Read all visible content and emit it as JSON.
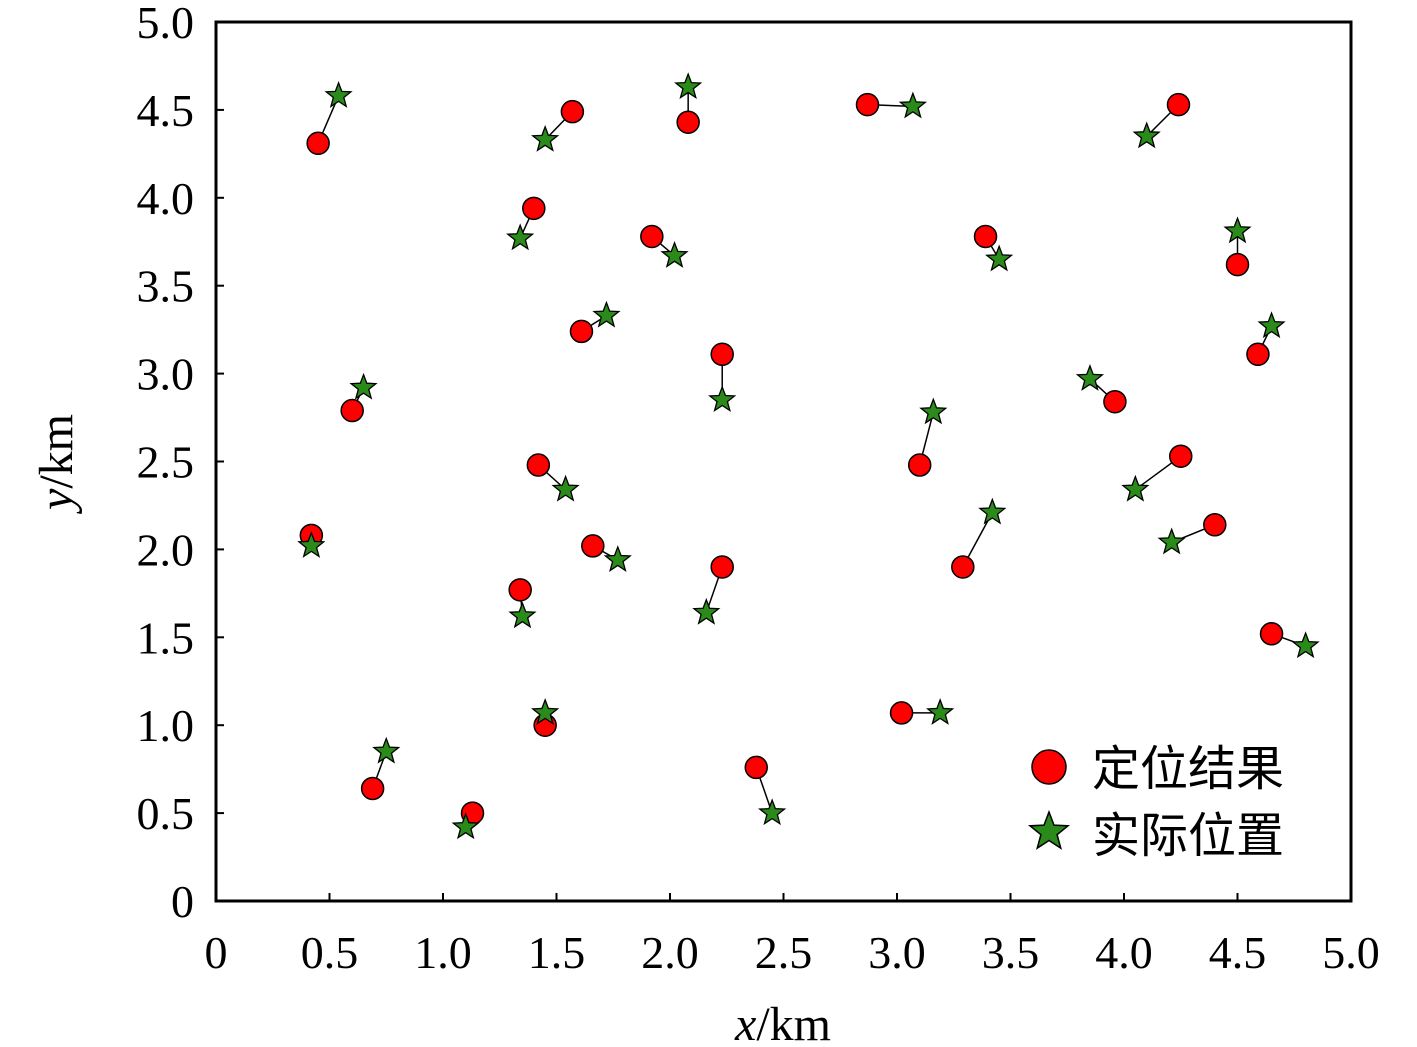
{
  "chart_data": {
    "type": "scatter",
    "xlabel_var": "x",
    "xlabel_unit": "/km",
    "ylabel_var": "y",
    "ylabel_unit": "/km",
    "xlim": [
      0,
      5
    ],
    "ylim": [
      0,
      5
    ],
    "x_ticks": [
      "0",
      "0.5",
      "1.0",
      "1.5",
      "2.0",
      "2.5",
      "3.0",
      "3.5",
      "4.0",
      "4.5",
      "5.0"
    ],
    "y_ticks": [
      "0",
      "0.5",
      "1.0",
      "1.5",
      "2.0",
      "2.5",
      "3.0",
      "3.5",
      "4.0",
      "4.5",
      "5.0"
    ],
    "grid": false,
    "legend_position": "bottom-right",
    "series": [
      {
        "name": "定位结果",
        "marker": "circle",
        "color": "#ff0000",
        "points": [
          [
            0.45,
            4.31
          ],
          [
            1.57,
            4.49
          ],
          [
            2.08,
            4.43
          ],
          [
            2.87,
            4.53
          ],
          [
            4.24,
            4.53
          ],
          [
            1.4,
            3.94
          ],
          [
            1.92,
            3.78
          ],
          [
            3.39,
            3.78
          ],
          [
            4.5,
            3.62
          ],
          [
            1.61,
            3.24
          ],
          [
            2.23,
            3.11
          ],
          [
            4.59,
            3.11
          ],
          [
            0.6,
            2.79
          ],
          [
            3.96,
            2.84
          ],
          [
            1.42,
            2.48
          ],
          [
            3.1,
            2.48
          ],
          [
            4.25,
            2.53
          ],
          [
            0.42,
            2.08
          ],
          [
            1.66,
            2.02
          ],
          [
            4.4,
            2.14
          ],
          [
            1.34,
            1.77
          ],
          [
            2.23,
            1.9
          ],
          [
            3.29,
            1.9
          ],
          [
            4.65,
            1.52
          ],
          [
            1.45,
            1.0
          ],
          [
            3.02,
            1.07
          ],
          [
            0.69,
            0.64
          ],
          [
            2.38,
            0.76
          ],
          [
            1.13,
            0.5
          ]
        ]
      },
      {
        "name": "实际位置",
        "marker": "star",
        "color": "#2a8a1a",
        "points": [
          [
            0.54,
            4.58
          ],
          [
            1.45,
            4.33
          ],
          [
            2.08,
            4.63
          ],
          [
            3.07,
            4.52
          ],
          [
            4.1,
            4.35
          ],
          [
            1.34,
            3.77
          ],
          [
            2.02,
            3.67
          ],
          [
            3.45,
            3.65
          ],
          [
            4.5,
            3.81
          ],
          [
            1.72,
            3.33
          ],
          [
            2.23,
            2.85
          ],
          [
            4.65,
            3.27
          ],
          [
            0.65,
            2.92
          ],
          [
            3.85,
            2.97
          ],
          [
            1.54,
            2.34
          ],
          [
            3.16,
            2.78
          ],
          [
            4.05,
            2.34
          ],
          [
            0.42,
            2.02
          ],
          [
            1.77,
            1.94
          ],
          [
            4.21,
            2.04
          ],
          [
            1.35,
            1.62
          ],
          [
            2.16,
            1.64
          ],
          [
            3.42,
            2.21
          ],
          [
            4.8,
            1.45
          ],
          [
            1.45,
            1.07
          ],
          [
            3.19,
            1.07
          ],
          [
            0.75,
            0.85
          ],
          [
            2.45,
            0.5
          ],
          [
            1.1,
            0.42
          ]
        ]
      }
    ]
  }
}
